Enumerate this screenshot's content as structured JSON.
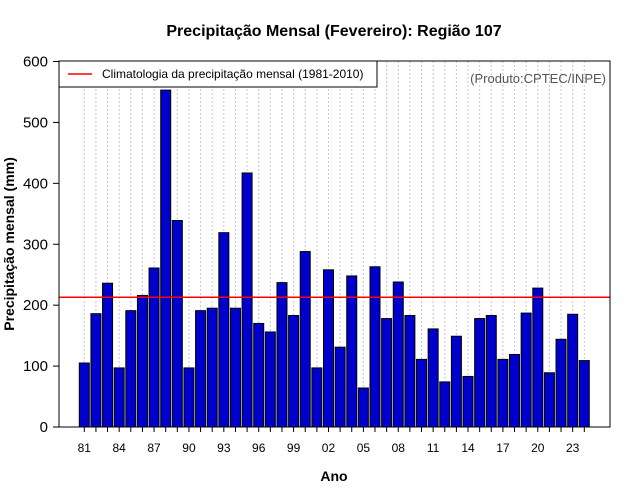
{
  "chart_data": {
    "type": "bar",
    "title": "Precipitação Mensal (Fevereiro): Região 107",
    "xlabel": "Ano",
    "ylabel": "Precipitação mensal (mm)",
    "source": "(Produto:CPTEC/INPE)",
    "ylim": [
      0,
      600
    ],
    "yticks": [
      0,
      100,
      200,
      300,
      400,
      500,
      600
    ],
    "xtick_labels": [
      "81",
      "84",
      "87",
      "90",
      "93",
      "96",
      "99",
      "02",
      "05",
      "08",
      "11",
      "14",
      "17",
      "20",
      "23"
    ],
    "categories": [
      "1981",
      "1982",
      "1983",
      "1984",
      "1985",
      "1986",
      "1987",
      "1988",
      "1989",
      "1990",
      "1991",
      "1992",
      "1993",
      "1994",
      "1995",
      "1996",
      "1997",
      "1998",
      "1999",
      "2000",
      "2001",
      "2002",
      "2003",
      "2004",
      "2005",
      "2006",
      "2007",
      "2008",
      "2009",
      "2010",
      "2011",
      "2012",
      "2013",
      "2014",
      "2015",
      "2016",
      "2017",
      "2018",
      "2019",
      "2020",
      "2021",
      "2022",
      "2023",
      "2024"
    ],
    "values": [
      105,
      186,
      236,
      97,
      191,
      216,
      261,
      553,
      339,
      97,
      191,
      195,
      319,
      195,
      417,
      170,
      156,
      237,
      183,
      288,
      97,
      258,
      131,
      248,
      64,
      263,
      178,
      238,
      183,
      111,
      161,
      74,
      149,
      83,
      178,
      183,
      111,
      119,
      187,
      228,
      89,
      144,
      185,
      109
    ],
    "climatology": 213,
    "legend": {
      "label": "Climatologia da precipitação mensal (1981-2010)",
      "position": "top-left"
    },
    "colors": {
      "bar_fill": "#0000cc",
      "bar_stroke": "#000000",
      "climatology_line": "#ff0000",
      "grid": "#c8c8c8"
    },
    "grid": true
  }
}
